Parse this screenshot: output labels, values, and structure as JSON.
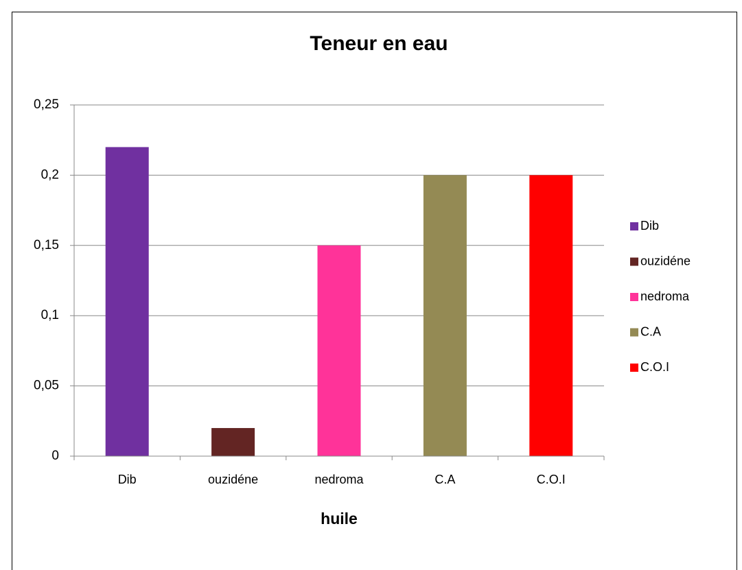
{
  "chart_data": {
    "type": "bar",
    "title": "Teneur en eau",
    "x_label": "huile",
    "categories": [
      "Dib",
      "ouzidéne",
      "nedroma",
      "C.A",
      "C.O.I"
    ],
    "values": [
      0.22,
      0.02,
      0.15,
      0.2,
      0.2
    ],
    "colors": [
      "#7030a0",
      "#632523",
      "#ff3399",
      "#948a54",
      "#ff0000"
    ],
    "ylim": [
      0,
      0.25
    ],
    "yticks": [
      0,
      {
        "value": 0.05,
        "label": "0,05"
      },
      {
        "value": 0.1,
        "label": "0,1"
      },
      {
        "value": 0.15,
        "label": "0,15"
      },
      {
        "value": 0.2,
        "label": "0,2"
      },
      {
        "value": 0.25,
        "label": "0,25"
      }
    ],
    "grid": true,
    "legend": "right"
  }
}
